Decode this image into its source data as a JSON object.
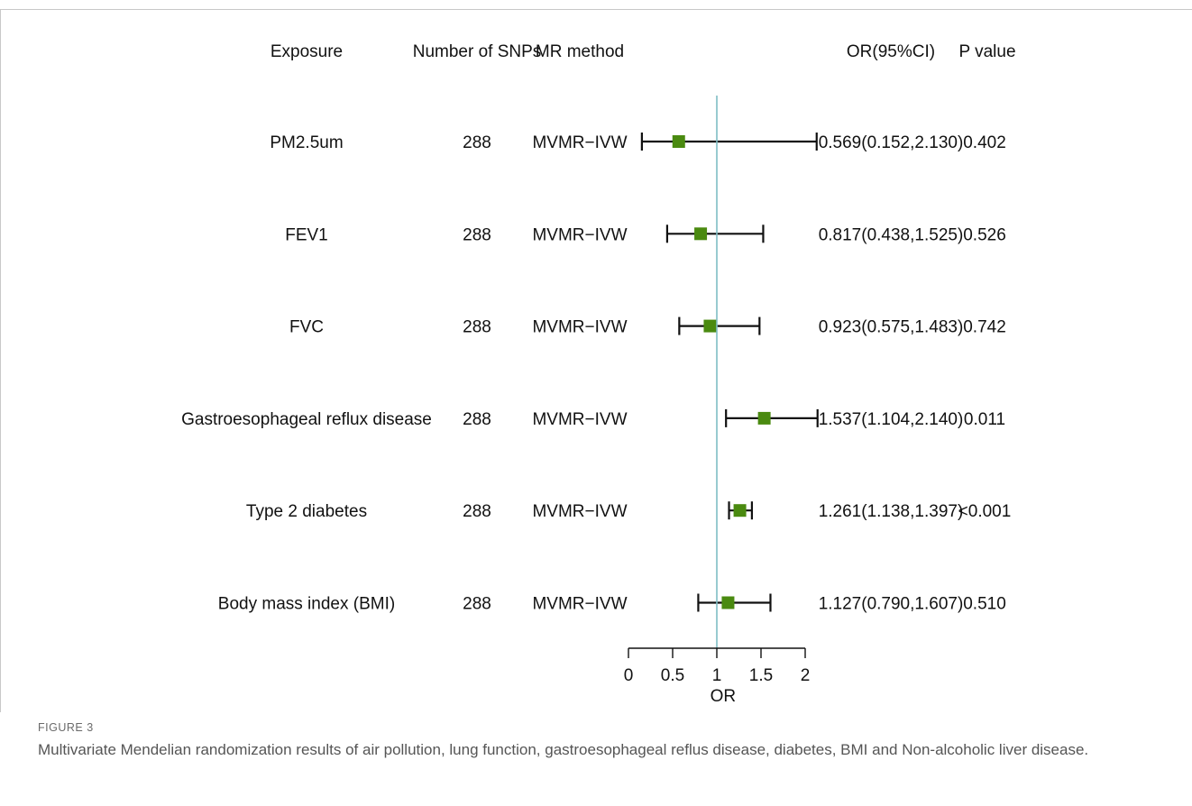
{
  "chart_data": {
    "type": "forest",
    "headers": {
      "exposure": "Exposure",
      "n_snps": "Number of SNPs",
      "method": "MR method",
      "or_ci": "OR(95%CI)",
      "p": "P value"
    },
    "rows": [
      {
        "exposure": "PM2.5um",
        "n_snps": "288",
        "method": "MVMR−IVW",
        "or": 0.569,
        "lower": 0.152,
        "upper": 2.13,
        "or_ci_text": "0.569(0.152,2.130)",
        "p": "0.402"
      },
      {
        "exposure": "FEV1",
        "n_snps": "288",
        "method": "MVMR−IVW",
        "or": 0.817,
        "lower": 0.438,
        "upper": 1.525,
        "or_ci_text": "0.817(0.438,1.525)",
        "p": "0.526"
      },
      {
        "exposure": "FVC",
        "n_snps": "288",
        "method": "MVMR−IVW",
        "or": 0.923,
        "lower": 0.575,
        "upper": 1.483,
        "or_ci_text": "0.923(0.575,1.483)",
        "p": "0.742"
      },
      {
        "exposure": "Gastroesophageal reflux disease",
        "n_snps": "288",
        "method": "MVMR−IVW",
        "or": 1.537,
        "lower": 1.104,
        "upper": 2.14,
        "or_ci_text": "1.537(1.104,2.140)",
        "p": "0.011"
      },
      {
        "exposure": "Type 2 diabetes",
        "n_snps": "288",
        "method": "MVMR−IVW",
        "or": 1.261,
        "lower": 1.138,
        "upper": 1.397,
        "or_ci_text": "1.261(1.138,1.397)",
        "p": "<0.001"
      },
      {
        "exposure": "Body mass index (BMI)",
        "n_snps": "288",
        "method": "MVMR−IVW",
        "or": 1.127,
        "lower": 0.79,
        "upper": 1.607,
        "or_ci_text": "1.127(0.790,1.607)",
        "p": "0.510"
      }
    ],
    "xlabel": "OR",
    "xlim": [
      0,
      2
    ],
    "xticks": [
      0,
      0.5,
      1,
      1.5,
      2
    ],
    "xtick_labels": [
      "0",
      "0.5",
      "1",
      "1.5",
      "2"
    ],
    "reference_line": 1,
    "colors": {
      "point": "#4a8a10",
      "reference_line": "#7fbcc4",
      "whisker": "#111111"
    }
  },
  "caption": {
    "label": "FIGURE 3",
    "text": "Multivariate Mendelian randomization results of air pollution, lung function, gastroesophageal reflus disease, diabetes, BMI and Non-alcoholic liver disease."
  }
}
